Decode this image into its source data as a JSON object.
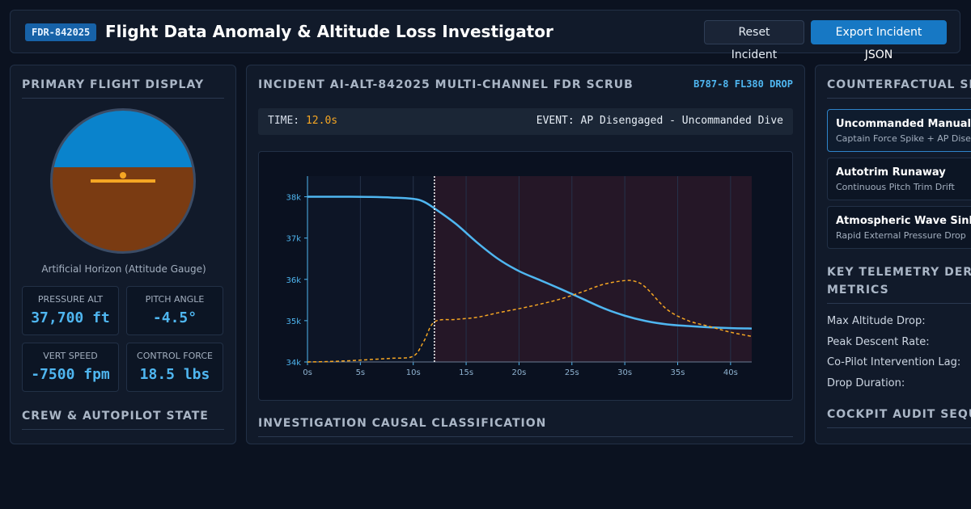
{
  "header": {
    "badge": "FDR-842025",
    "title": "Flight Data Anomaly & Altitude Loss Investigator",
    "reset_label": "Reset Incident",
    "export_label": "Export Incident JSON"
  },
  "left": {
    "pfd_title": "PRIMARY FLIGHT DISPLAY",
    "horizon_caption": "Artificial Horizon (Attitude Gauge)",
    "metrics": [
      {
        "label": "PRESSURE ALT",
        "value": "37,700 ft"
      },
      {
        "label": "PITCH ANGLE",
        "value": "-4.5°"
      },
      {
        "label": "VERT SPEED",
        "value": "-7500 fpm"
      },
      {
        "label": "CONTROL FORCE",
        "value": "18.5 lbs"
      }
    ],
    "crew_title": "CREW & AUTOPILOT STATE"
  },
  "middle": {
    "title": "INCIDENT AI-ALT-842025 MULTI-CHANNEL FDR SCRUB",
    "tag": "B787-8 FL380 DROP",
    "time_label": "TIME:",
    "time_value": "12.0s",
    "event_text": "EVENT: AP Disengaged - Uncommanded Dive",
    "classification_title": "INVESTIGATION CAUSAL CLASSIFICATION"
  },
  "right": {
    "counterfactual_title": "COUNTERFACTUAL SIG",
    "scenarios": [
      {
        "name": "Uncommanded Manual",
        "desc": "Captain Force Spike + AP Dise"
      },
      {
        "name": "Autotrim Runaway",
        "desc": "Continuous Pitch Trim Drift"
      },
      {
        "name": "Atmospheric Wave Sink",
        "desc": "Rapid External Pressure Drop"
      }
    ],
    "metrics_title_1": "KEY TELEMETRY DERIV",
    "metrics_title_2": "METRICS",
    "metric_labels": [
      "Max Altitude Drop:",
      "Peak Descent Rate:",
      "Co-Pilot Intervention Lag:",
      "Drop Duration:"
    ],
    "audit_title": "COCKPIT AUDIT SEQU"
  },
  "colors": {
    "altitude_line": "#4fb6f0",
    "force_line": "#f5a623",
    "event_region": "#2a1828",
    "accent": "#1778c4"
  },
  "chart_data": {
    "type": "line",
    "x_ticks": [
      "0s",
      "5s",
      "10s",
      "15s",
      "20s",
      "25s",
      "30s",
      "35s",
      "40s"
    ],
    "y_ticks": [
      "34k",
      "35k",
      "36k",
      "37k",
      "38k"
    ],
    "xlim": [
      0,
      42
    ],
    "ylim": [
      34000,
      38500
    ],
    "cursor_x": 12,
    "event_region": [
      12,
      42
    ],
    "series": [
      {
        "color": "#4fb6f0",
        "style": "solid",
        "x": [
          0,
          2,
          4,
          6,
          8,
          10,
          11,
          12,
          14,
          16,
          18,
          20,
          22,
          24,
          26,
          28,
          30,
          32,
          34,
          36,
          38,
          40,
          42
        ],
        "y": [
          38000,
          38000,
          38000,
          37995,
          37980,
          37950,
          37880,
          37720,
          37350,
          36900,
          36500,
          36200,
          35980,
          35760,
          35530,
          35300,
          35120,
          34990,
          34910,
          34870,
          34840,
          34820,
          34810
        ]
      },
      {
        "color": "#f5a623",
        "style": "dashed",
        "y_scale": "force",
        "x": [
          0,
          2,
          4,
          6,
          8,
          10,
          11,
          12,
          14,
          16,
          18,
          20,
          22,
          24,
          26,
          28,
          30,
          31,
          32,
          34,
          36,
          38,
          40,
          42
        ],
        "y": [
          34000,
          34010,
          34030,
          34060,
          34090,
          34140,
          34500,
          34970,
          35030,
          35080,
          35190,
          35290,
          35400,
          35530,
          35700,
          35880,
          35970,
          35950,
          35800,
          35270,
          35000,
          34860,
          34720,
          34620
        ]
      }
    ]
  }
}
